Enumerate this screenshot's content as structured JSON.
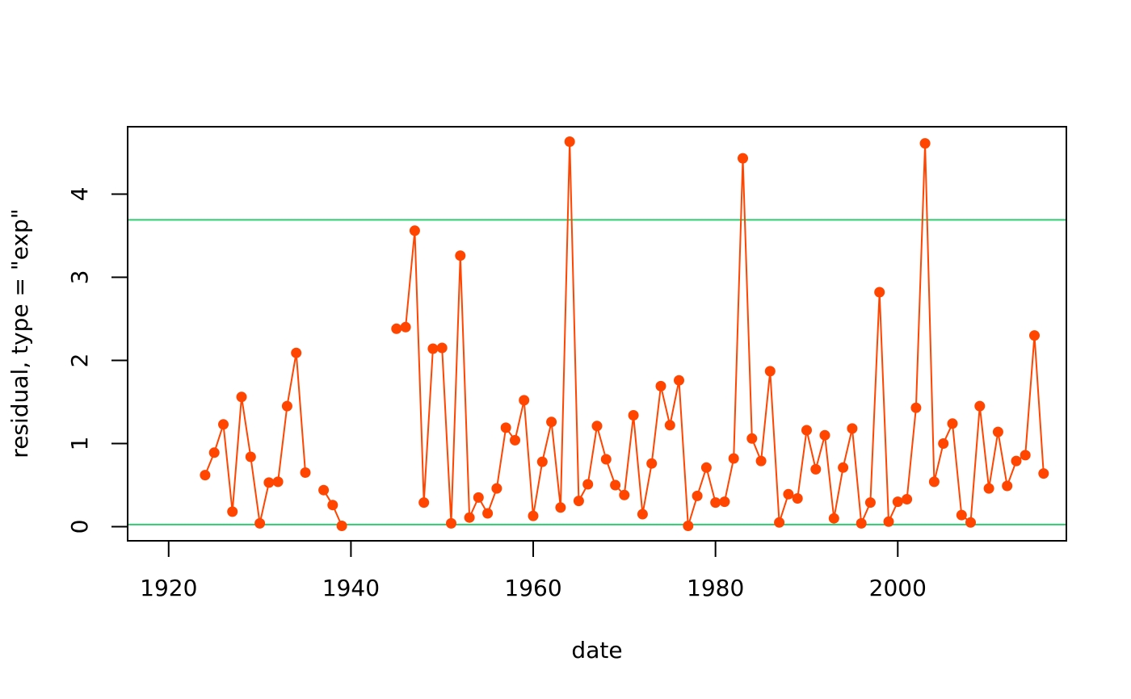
{
  "chart_data": {
    "type": "line",
    "title": "",
    "xlabel": "date",
    "ylabel": "residual, type = \"exp\"",
    "xlim": [
      1915.5,
      2018.5
    ],
    "ylim": [
      -0.17,
      4.81
    ],
    "x_ticks": [
      1920,
      1940,
      1960,
      1980,
      2000
    ],
    "x_tick_labels": [
      "1920",
      "1940",
      "1960",
      "1980",
      "2000"
    ],
    "y_ticks": [
      0,
      1,
      2,
      3,
      4
    ],
    "y_tick_labels": [
      "0",
      "1",
      "2",
      "3",
      "4"
    ],
    "grid": false,
    "legend": "none",
    "series": [
      {
        "color": "#FF4500",
        "marker": "filled-circle",
        "segments": [
          {
            "x": [
              1924,
              1925,
              1926,
              1927,
              1928,
              1929,
              1930,
              1931,
              1932,
              1933,
              1934,
              1935
            ],
            "y": [
              0.62,
              0.89,
              1.23,
              0.18,
              1.56,
              0.84,
              0.04,
              0.53,
              0.54,
              1.45,
              2.09,
              0.65
            ]
          },
          {
            "x": [
              1937,
              1938,
              1939
            ],
            "y": [
              0.44,
              0.26,
              0.01
            ]
          },
          {
            "x": [
              1945,
              1946,
              1947,
              1948,
              1949,
              1950,
              1951,
              1952,
              1953,
              1954,
              1955,
              1956,
              1957,
              1958,
              1959,
              1960,
              1961,
              1962,
              1963,
              1964,
              1965,
              1966,
              1967,
              1968,
              1969,
              1970,
              1971,
              1972,
              1973,
              1974,
              1975,
              1976,
              1977,
              1978,
              1979,
              1980,
              1981,
              1982,
              1983,
              1984,
              1985,
              1986,
              1987,
              1988,
              1989,
              1990,
              1991,
              1992,
              1993,
              1994,
              1995,
              1996,
              1997,
              1998,
              1999,
              2000,
              2001,
              2002,
              2003,
              2004,
              2005,
              2006,
              2007,
              2008,
              2009,
              2010,
              2011,
              2012,
              2013,
              2014,
              2015,
              2016
            ],
            "y": [
              2.38,
              2.4,
              3.56,
              0.29,
              2.14,
              2.15,
              0.04,
              3.26,
              0.11,
              0.35,
              0.16,
              0.46,
              1.19,
              1.04,
              1.52,
              0.13,
              0.78,
              1.26,
              0.23,
              4.63,
              0.31,
              0.51,
              1.21,
              0.81,
              0.5,
              0.38,
              1.34,
              0.15,
              0.76,
              1.69,
              1.22,
              1.76,
              0.01,
              0.37,
              0.71,
              0.29,
              0.3,
              0.82,
              4.43,
              1.06,
              0.79,
              1.87,
              0.05,
              0.39,
              0.34,
              1.16,
              0.69,
              1.1,
              0.1,
              0.71,
              1.18,
              0.04,
              0.29,
              2.82,
              0.06,
              0.3,
              0.33,
              1.43,
              4.61,
              0.54,
              1.0,
              1.24,
              0.14,
              0.05,
              1.45,
              0.46,
              1.14,
              0.49,
              0.79,
              0.86,
              2.3,
              0.64
            ]
          }
        ]
      }
    ],
    "reference_lines": [
      {
        "y": 3.69,
        "color": "#2ECC71"
      },
      {
        "y": 0.025,
        "color": "#2ECC71"
      }
    ]
  }
}
